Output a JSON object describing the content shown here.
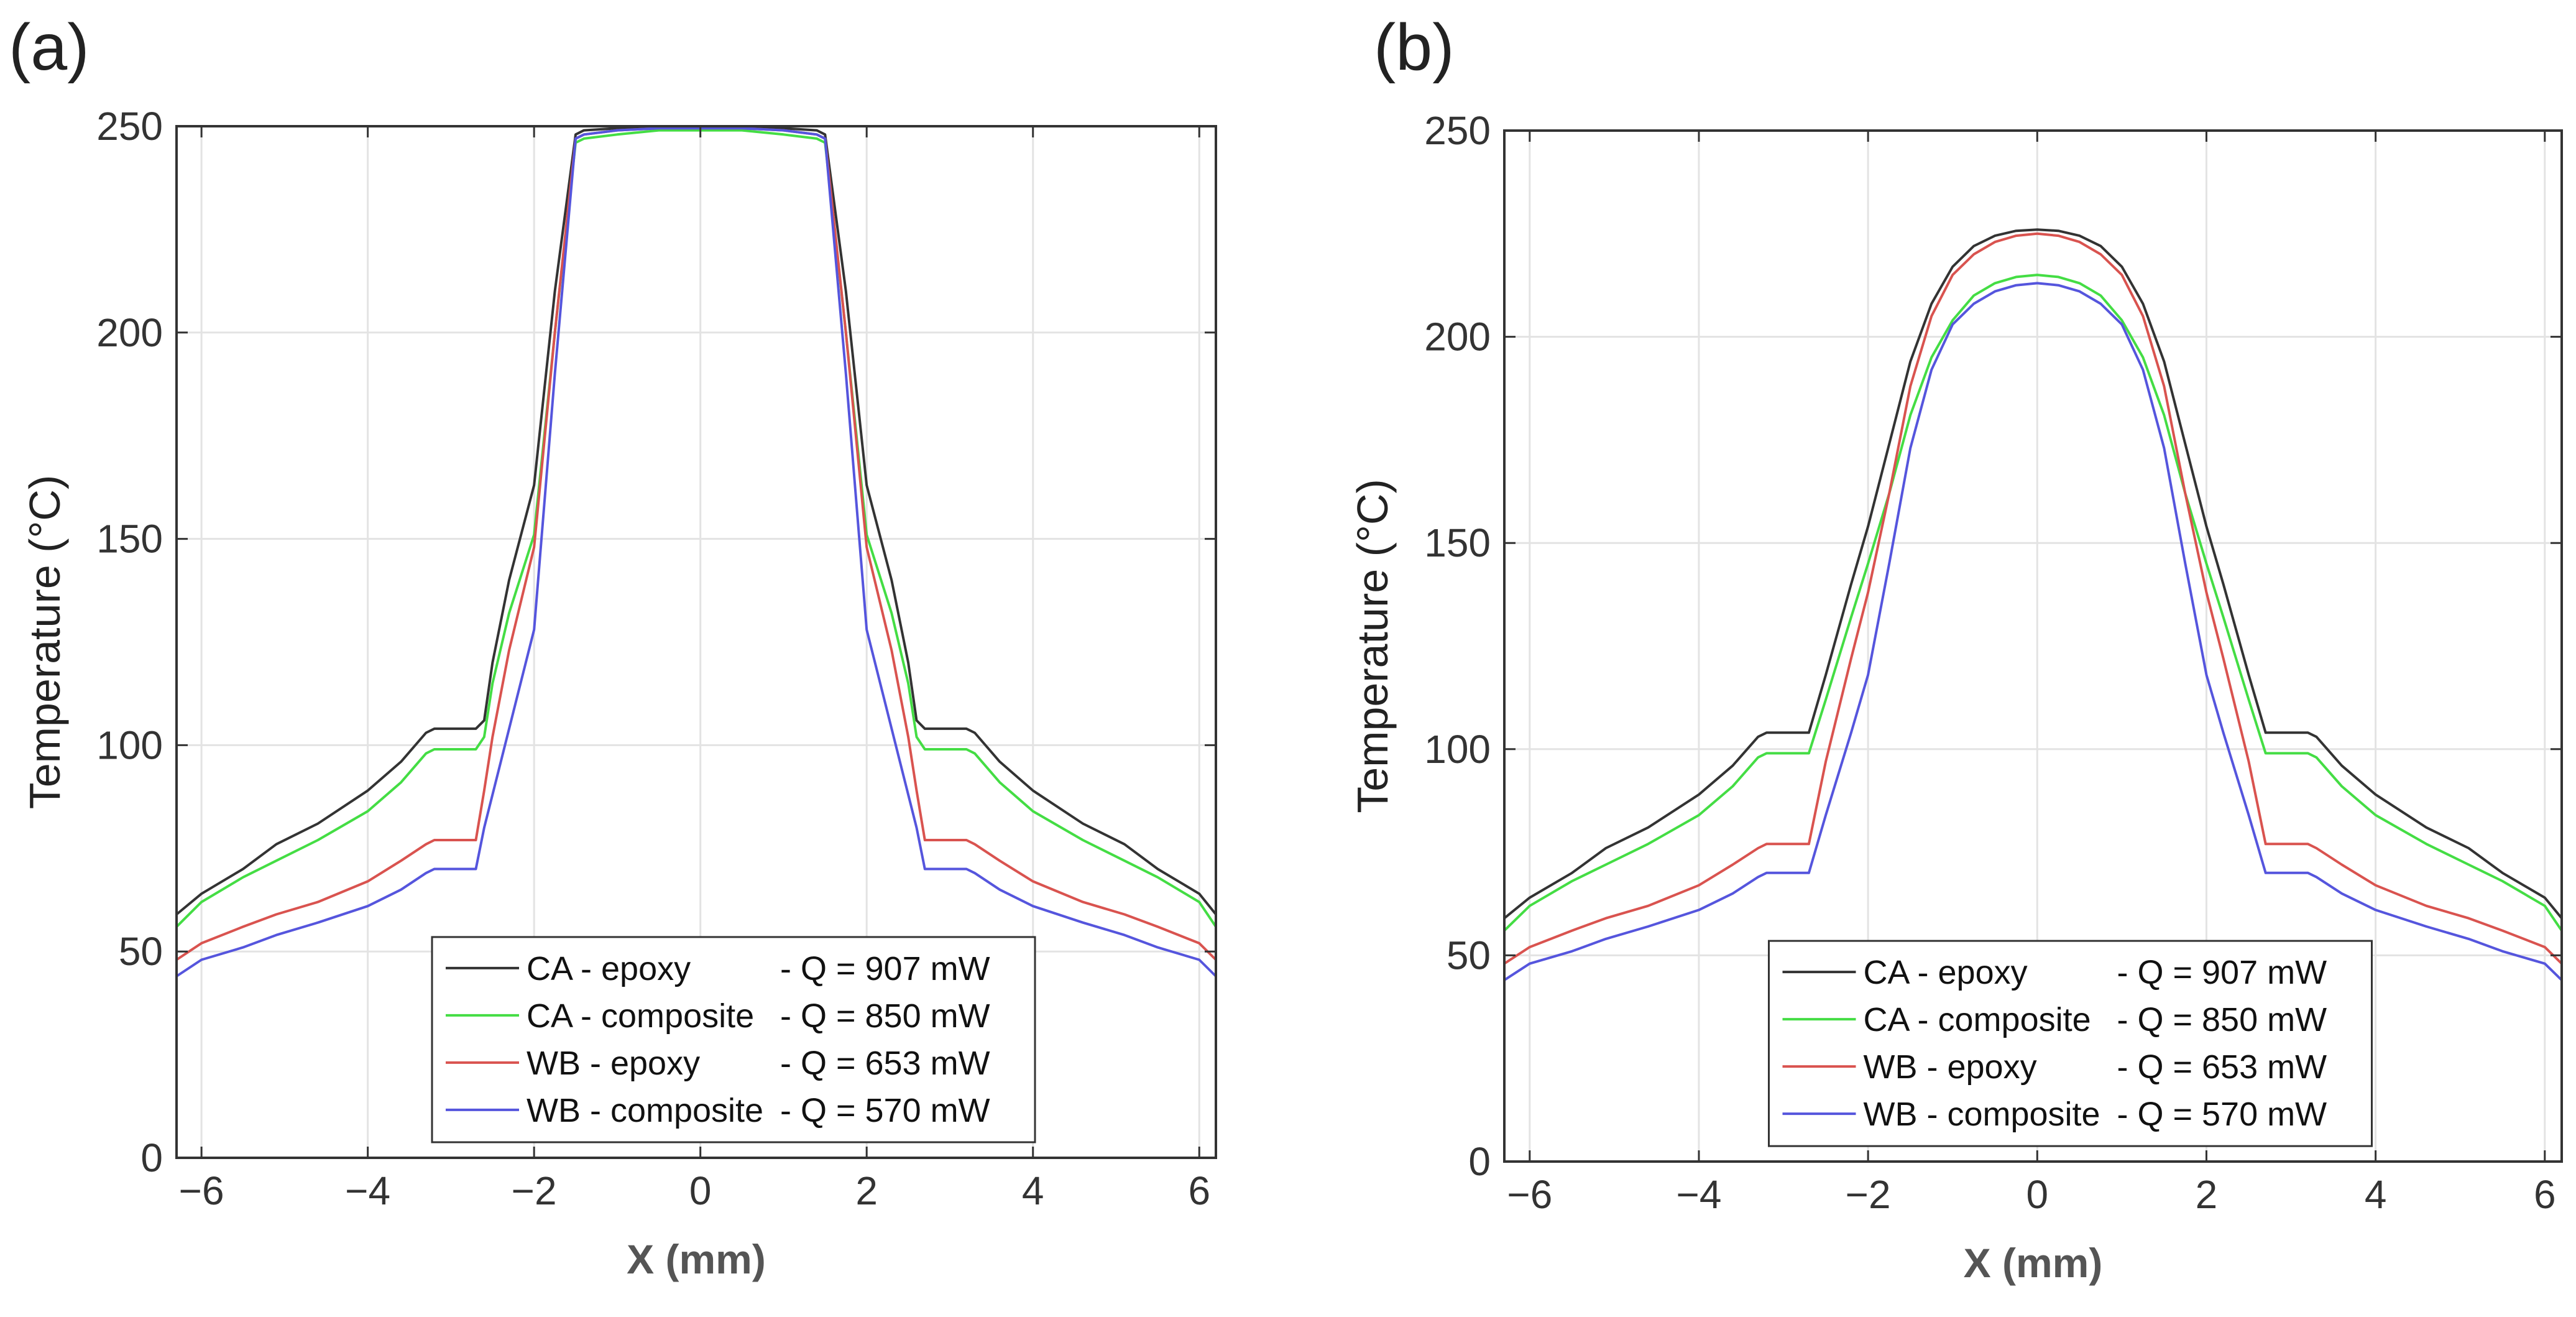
{
  "chart_data": [
    {
      "type": "line",
      "panel_label": "(a)",
      "xlabel": "X (mm)",
      "ylabel": "Temperature (°C)",
      "xlim": [
        -6.3,
        6.2
      ],
      "ylim": [
        0,
        250
      ],
      "xticks": [
        -6,
        -4,
        -2,
        0,
        2,
        4,
        6
      ],
      "xtick_labels": [
        "−6",
        "−4",
        "−2",
        "0",
        "2",
        "4",
        "6"
      ],
      "yticks": [
        0,
        50,
        100,
        150,
        200,
        250
      ],
      "ytick_labels": [
        "0",
        "50",
        "100",
        "150",
        "200",
        "250"
      ],
      "grid": true,
      "legend_position": "bottom-center",
      "series": [
        {
          "name": "CA - epoxy",
          "legend_suffix": "- Q = 907 mW",
          "color": "#333333",
          "x": [
            -6.3,
            -6,
            -5.5,
            -5.1,
            -4.6,
            -4,
            -3.6,
            -3.3,
            -3.2,
            -2.7,
            -2.6,
            -2.5,
            -2.3,
            -2,
            -1.75,
            -1.5,
            -1.4,
            -1,
            -0.5,
            0,
            0.5,
            1,
            1.4,
            1.5,
            1.75,
            2,
            2.3,
            2.5,
            2.6,
            2.7,
            3.2,
            3.3,
            3.6,
            4,
            4.6,
            5.1,
            5.5,
            6,
            6.2
          ],
          "y": [
            59,
            64,
            70,
            76,
            81,
            89,
            96,
            103,
            104,
            104,
            106,
            120,
            140,
            163,
            210,
            248,
            249,
            249.5,
            250,
            250,
            250,
            249.5,
            249,
            248,
            210,
            163,
            140,
            120,
            106,
            104,
            104,
            103,
            96,
            89,
            81,
            76,
            70,
            64,
            59
          ]
        },
        {
          "name": "CA - composite",
          "legend_suffix": "- Q = 850 mW",
          "color": "#44dd44",
          "x": [
            -6.3,
            -6,
            -5.5,
            -5.1,
            -4.6,
            -4,
            -3.6,
            -3.3,
            -3.2,
            -2.7,
            -2.6,
            -2.5,
            -2.3,
            -2,
            -1.75,
            -1.5,
            -1.4,
            -1,
            -0.5,
            0,
            0.5,
            1,
            1.4,
            1.5,
            1.75,
            2,
            2.3,
            2.5,
            2.6,
            2.7,
            3.2,
            3.3,
            3.6,
            4,
            4.6,
            5.1,
            5.5,
            6,
            6.2
          ],
          "y": [
            56,
            62,
            68,
            72,
            77,
            84,
            91,
            98,
            99,
            99,
            102,
            115,
            132,
            151,
            200,
            246,
            247,
            248,
            249,
            249,
            249,
            248,
            247,
            246,
            200,
            151,
            132,
            115,
            102,
            99,
            99,
            98,
            91,
            84,
            77,
            72,
            68,
            62,
            56
          ]
        },
        {
          "name": "WB - epoxy",
          "legend_suffix": "- Q = 653 mW",
          "color": "#d9534f",
          "x": [
            -6.3,
            -6,
            -5.5,
            -5.1,
            -4.6,
            -4,
            -3.6,
            -3.3,
            -3.2,
            -2.7,
            -2.6,
            -2.5,
            -2.3,
            -2,
            -1.75,
            -1.5,
            -1.4,
            -1,
            -0.5,
            0,
            0.5,
            1,
            1.4,
            1.5,
            1.75,
            2,
            2.3,
            2.5,
            2.6,
            2.7,
            3.2,
            3.3,
            3.6,
            4,
            4.6,
            5.1,
            5.5,
            6,
            6.2
          ],
          "y": [
            48,
            52,
            56,
            59,
            62,
            67,
            72,
            76,
            77,
            77,
            89,
            102,
            123,
            148,
            200,
            247,
            248,
            249,
            249.5,
            249.5,
            249.5,
            249,
            248,
            247,
            200,
            148,
            123,
            102,
            89,
            77,
            77,
            76,
            72,
            67,
            62,
            59,
            56,
            52,
            48
          ]
        },
        {
          "name": "WB - composite",
          "legend_suffix": "- Q = 570 mW",
          "color": "#5555dd",
          "x": [
            -6.3,
            -6,
            -5.5,
            -5.1,
            -4.6,
            -4,
            -3.6,
            -3.3,
            -3.2,
            -2.7,
            -2.6,
            -2.4,
            -2.2,
            -2,
            -1.75,
            -1.5,
            -1.4,
            -1,
            -0.5,
            0,
            0.5,
            1,
            1.4,
            1.5,
            1.75,
            2,
            2.2,
            2.4,
            2.6,
            2.7,
            3.2,
            3.3,
            3.6,
            4,
            4.6,
            5.1,
            5.5,
            6,
            6.2
          ],
          "y": [
            44,
            48,
            51,
            54,
            57,
            61,
            65,
            69,
            70,
            70,
            80,
            96,
            112,
            128,
            190,
            247,
            248,
            249,
            249.5,
            249.5,
            249.5,
            249,
            248,
            247,
            190,
            128,
            112,
            96,
            80,
            70,
            70,
            69,
            65,
            61,
            57,
            54,
            51,
            48,
            44
          ]
        }
      ]
    },
    {
      "type": "line",
      "panel_label": "(b)",
      "xlabel": "X (mm)",
      "ylabel": "Temperature (°C)",
      "xlim": [
        -6.3,
        6.2
      ],
      "ylim": [
        0,
        250
      ],
      "xticks": [
        -6,
        -4,
        -2,
        0,
        2,
        4,
        6
      ],
      "xtick_labels": [
        "−6",
        "−4",
        "−2",
        "0",
        "2",
        "4",
        "6"
      ],
      "yticks": [
        0,
        50,
        100,
        150,
        200,
        250
      ],
      "ytick_labels": [
        "0",
        "50",
        "100",
        "150",
        "200",
        "250"
      ],
      "grid": true,
      "legend_position": "bottom-center",
      "series": [
        {
          "name": "CA - epoxy",
          "legend_suffix": "- Q = 907 mW",
          "color": "#333333",
          "x": [
            -6.3,
            -6,
            -5.5,
            -5.1,
            -4.6,
            -4,
            -3.6,
            -3.3,
            -3.2,
            -2.7,
            -2.5,
            -2.2,
            -2,
            -1.75,
            -1.5,
            -1.25,
            -1,
            -0.75,
            -0.5,
            -0.25,
            0,
            0.25,
            0.5,
            0.75,
            1,
            1.25,
            1.5,
            1.75,
            2,
            2.2,
            2.5,
            2.7,
            3.2,
            3.3,
            3.6,
            4,
            4.6,
            5.1,
            5.5,
            6,
            6.2
          ],
          "y": [
            59,
            64,
            70,
            76,
            81,
            89,
            96,
            103,
            104,
            104,
            118,
            140,
            154,
            174,
            194,
            208,
            217,
            222,
            224.5,
            225.7,
            226,
            225.7,
            224.5,
            222,
            217,
            208,
            194,
            174,
            154,
            140,
            118,
            104,
            104,
            103,
            96,
            89,
            81,
            76,
            70,
            64,
            59
          ]
        },
        {
          "name": "CA - composite",
          "legend_suffix": "- Q = 850 mW",
          "color": "#44dd44",
          "x": [
            -6.3,
            -6,
            -5.5,
            -5.1,
            -4.6,
            -4,
            -3.6,
            -3.3,
            -3.2,
            -2.7,
            -2.5,
            -2.2,
            -2,
            -1.75,
            -1.5,
            -1.25,
            -1,
            -0.75,
            -0.5,
            -0.25,
            0,
            0.25,
            0.5,
            0.75,
            1,
            1.25,
            1.5,
            1.75,
            2,
            2.2,
            2.5,
            2.7,
            3.2,
            3.3,
            3.6,
            4,
            4.6,
            5.1,
            5.5,
            6,
            6.2
          ],
          "y": [
            56,
            62,
            68,
            72,
            77,
            84,
            91,
            98,
            99,
            99,
            112,
            132,
            145,
            162,
            181,
            195,
            204,
            210,
            213,
            214.5,
            215,
            214.5,
            213,
            210,
            204,
            195,
            181,
            162,
            145,
            132,
            112,
            99,
            99,
            98,
            91,
            84,
            77,
            72,
            68,
            62,
            56
          ]
        },
        {
          "name": "WB - epoxy",
          "legend_suffix": "- Q = 653 mW",
          "color": "#d9534f",
          "x": [
            -6.3,
            -6,
            -5.5,
            -5.1,
            -4.6,
            -4,
            -3.6,
            -3.3,
            -3.2,
            -2.7,
            -2.5,
            -2.2,
            -2,
            -1.75,
            -1.5,
            -1.25,
            -1,
            -0.75,
            -0.5,
            -0.25,
            0,
            0.25,
            0.5,
            0.75,
            1,
            1.25,
            1.5,
            1.75,
            2,
            2.2,
            2.5,
            2.7,
            3.2,
            3.3,
            3.6,
            4,
            4.6,
            5.1,
            5.5,
            6,
            6.2
          ],
          "y": [
            48,
            52,
            56,
            59,
            62,
            67,
            72,
            76,
            77,
            77,
            97,
            122,
            138,
            162,
            188,
            205,
            215,
            220,
            223,
            224.5,
            225,
            224.5,
            223,
            220,
            215,
            205,
            188,
            162,
            138,
            122,
            97,
            77,
            77,
            76,
            72,
            67,
            62,
            59,
            56,
            52,
            48
          ]
        },
        {
          "name": "WB - composite",
          "legend_suffix": "- Q = 570 mW",
          "color": "#5555dd",
          "x": [
            -6.3,
            -6,
            -5.5,
            -5.1,
            -4.6,
            -4,
            -3.6,
            -3.3,
            -3.2,
            -2.7,
            -2.5,
            -2.2,
            -2,
            -1.75,
            -1.5,
            -1.25,
            -1,
            -0.75,
            -0.5,
            -0.25,
            0,
            0.25,
            0.5,
            0.75,
            1,
            1.25,
            1.5,
            1.75,
            2,
            2.2,
            2.5,
            2.7,
            3.2,
            3.3,
            3.6,
            4,
            4.6,
            5.1,
            5.5,
            6,
            6.2
          ],
          "y": [
            44,
            48,
            51,
            54,
            57,
            61,
            65,
            69,
            70,
            70,
            84,
            104,
            118,
            145,
            173,
            192,
            203,
            208,
            211,
            212.5,
            213,
            212.5,
            211,
            208,
            203,
            192,
            173,
            145,
            118,
            104,
            84,
            70,
            70,
            69,
            65,
            61,
            57,
            54,
            51,
            48,
            44
          ]
        }
      ]
    }
  ]
}
